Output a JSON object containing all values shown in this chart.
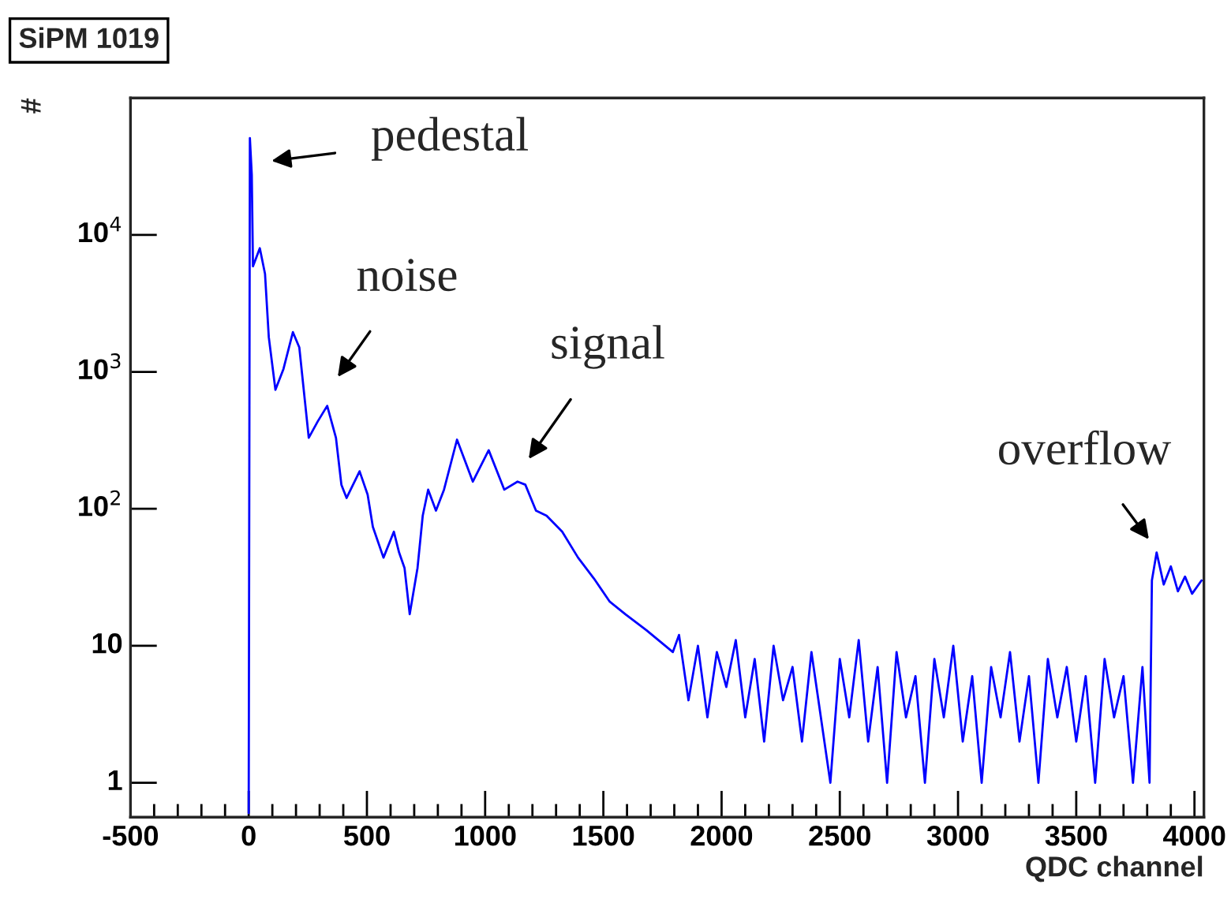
{
  "chart_data": {
    "type": "line",
    "title": "SiPM 1019",
    "xlabel": "QDC channel",
    "ylabel": "#",
    "log": "y",
    "grid": false,
    "legend": false,
    "xlim": [
      -500,
      4040
    ],
    "xticks": [
      -500,
      0,
      500,
      1000,
      1500,
      2000,
      2500,
      3000,
      3500,
      4000
    ],
    "ylim": [
      0.56,
      100000
    ],
    "yticks": [
      {
        "value": 1,
        "label": "1"
      },
      {
        "value": 10,
        "label": "10"
      },
      {
        "value": 100,
        "label": "10$^{2}$"
      },
      {
        "value": 1000,
        "label": "10$^{3}$"
      },
      {
        "value": 10000,
        "label": "10$^{4}$"
      }
    ],
    "annotations": [
      "pedestal",
      "noise",
      "signal",
      "overflow"
    ],
    "series": [
      {
        "color": "#0000ff",
        "x": [
          0,
          5,
          13,
          18,
          47,
          69,
          85,
          113,
          147,
          187,
          214,
          254,
          292,
          332,
          369,
          392,
          414,
          469,
          503,
          525,
          570,
          614,
          636,
          659,
          681,
          714,
          736,
          759,
          792,
          826,
          881,
          948,
          1015,
          1081,
          1137,
          1170,
          1215,
          1260,
          1326,
          1393,
          1460,
          1527,
          1593,
          1682,
          1794,
          1820,
          1860,
          1900,
          1940,
          1980,
          2020,
          2060,
          2100,
          2140,
          2180,
          2220,
          2260,
          2300,
          2340,
          2380,
          2420,
          2460,
          2500,
          2540,
          2580,
          2620,
          2660,
          2700,
          2740,
          2780,
          2820,
          2860,
          2900,
          2940,
          2980,
          3020,
          3060,
          3100,
          3140,
          3180,
          3220,
          3260,
          3300,
          3340,
          3380,
          3420,
          3460,
          3500,
          3540,
          3580,
          3620,
          3660,
          3700,
          3740,
          3780,
          3810,
          3820,
          3840,
          3870,
          3900,
          3930,
          3960,
          3990,
          4030
        ],
        "values": [
          0.6,
          51000,
          27500,
          5900,
          8000,
          5200,
          1790,
          740,
          1050,
          1950,
          1510,
          330,
          435,
          565,
          330,
          150,
          120,
          188,
          127,
          74,
          44,
          68,
          48,
          37,
          17,
          37,
          89,
          138,
          97,
          138,
          320,
          158,
          268,
          138,
          158,
          150,
          97,
          89,
          68,
          44,
          31,
          21,
          17,
          13,
          9,
          12,
          4,
          10,
          3,
          9,
          5,
          11,
          3,
          8,
          2,
          10,
          4,
          7,
          2,
          9,
          3,
          1,
          8,
          3,
          11,
          2,
          7,
          1,
          9,
          3,
          6,
          1,
          8,
          3,
          10,
          2,
          6,
          1,
          7,
          3,
          9,
          2,
          6,
          1,
          8,
          3,
          7,
          2,
          6,
          1,
          8,
          3,
          6,
          1,
          7,
          1,
          30,
          48,
          28,
          38,
          25,
          32,
          24,
          30
        ]
      }
    ]
  }
}
